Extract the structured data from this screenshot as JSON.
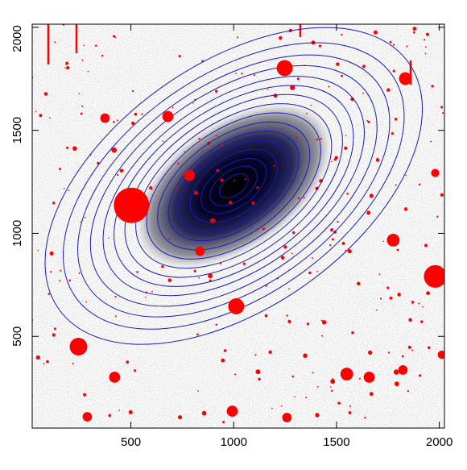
{
  "chart_data": {
    "type": "image",
    "xlim": [
      20,
      2025
    ],
    "ylim": [
      55,
      2015
    ],
    "xticks": [
      500,
      1000,
      1500,
      2000
    ],
    "yticks": [
      500,
      1000,
      1500,
      2000
    ],
    "isophotes": {
      "color": "#1a1ab8",
      "center": [
        1000,
        1230
      ],
      "axis_ratio": 0.57,
      "angle": 35,
      "semi_major": [
        80,
        130,
        180,
        240,
        300,
        360,
        420,
        480,
        540,
        600,
        660,
        720,
        790,
        860,
        940,
        1040
      ]
    },
    "masked_stars": {
      "color": "#ff0000",
      "x": [
        503,
        1980,
        245,
        1248,
        1012,
        1835,
        1550,
        1659,
        421,
        1823,
        680,
        374,
        1776,
        785,
        836,
        993,
        1259,
        288,
        1980,
        2012
      ],
      "y": [
        1136,
        791,
        450,
        1802,
        646,
        1751,
        317,
        302,
        302,
        337,
        1567,
        1559,
        967,
        1281,
        913,
        137,
        106,
        110,
        1293,
        411
      ],
      "size": [
        86,
        55,
        43,
        39,
        39,
        31,
        31,
        27,
        27,
        23,
        27,
        23,
        31,
        27,
        23,
        27,
        23,
        23,
        20,
        20
      ]
    }
  }
}
